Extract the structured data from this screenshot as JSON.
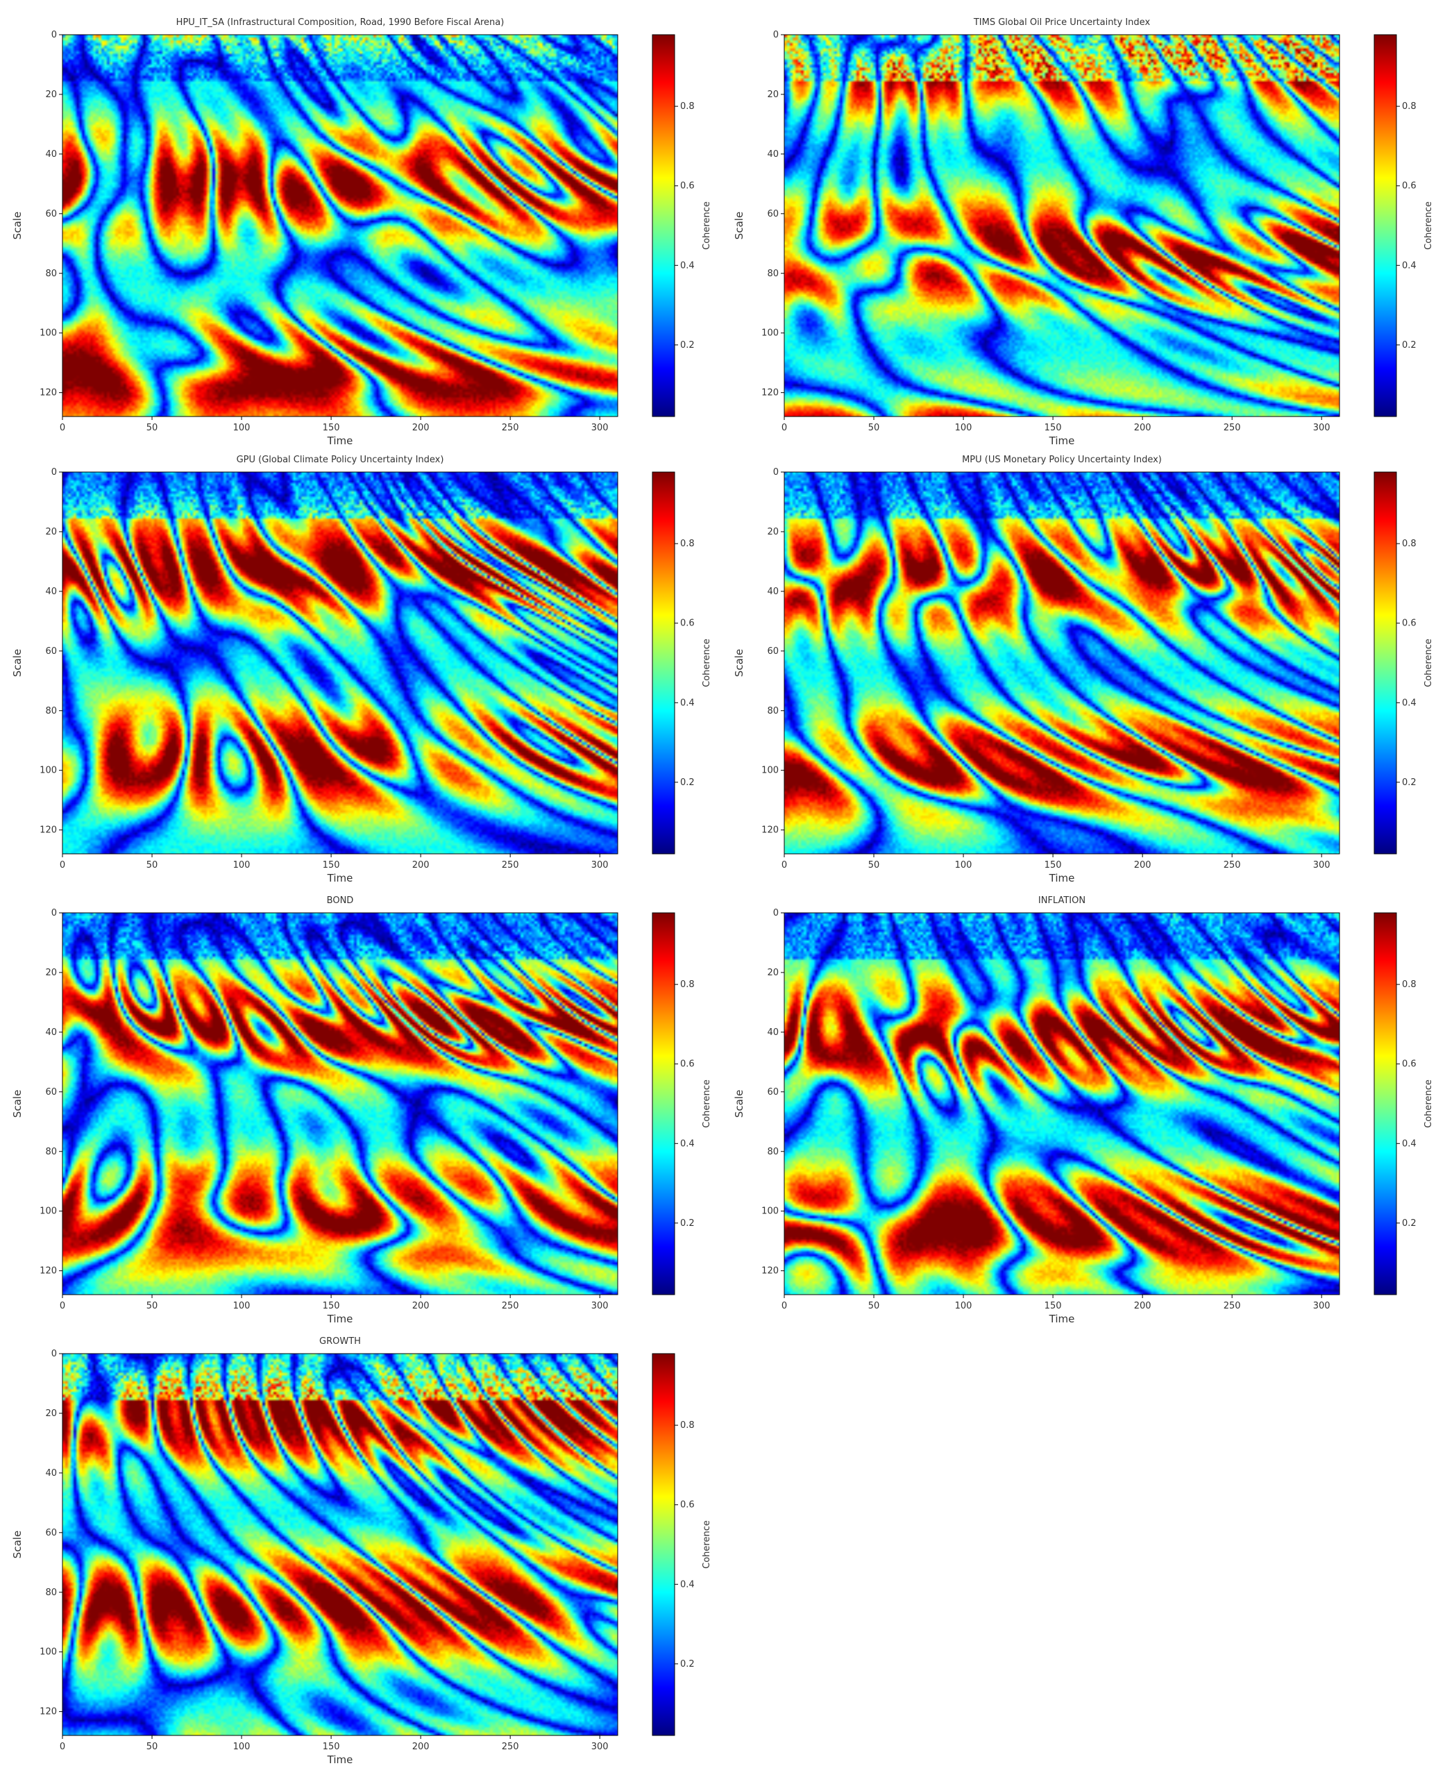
{
  "colormap": [
    "#00007f",
    "#0000ff",
    "#007fff",
    "#00ffff",
    "#7fff7f",
    "#ffff00",
    "#ff7f00",
    "#ff0000",
    "#7f0000"
  ],
  "chart_data": [
    {
      "type": "heatmap",
      "title": "HPU_IT_SA (Infrastructural Composition, Road, 1990 Before Fiscal Arena)",
      "xlabel": "Time",
      "ylabel": "Scale",
      "colorbar_label": "Coherence",
      "xlim": [
        0,
        310
      ],
      "ylim": [
        0,
        128
      ],
      "xticks": [
        0,
        50,
        100,
        150,
        200,
        250,
        300
      ],
      "yticks": [
        0,
        20,
        40,
        60,
        80,
        100,
        120
      ],
      "colorbar_ticks": [
        0.2,
        0.4,
        0.6,
        0.8
      ],
      "colorbar_range": [
        0.02,
        0.98
      ],
      "seed": 3
    },
    {
      "type": "heatmap",
      "title": "TIMS Global Oil Price Uncertainty Index",
      "xlabel": "Time",
      "ylabel": "Scale",
      "colorbar_label": "Coherence",
      "xlim": [
        0,
        310
      ],
      "ylim": [
        0,
        128
      ],
      "xticks": [
        0,
        50,
        100,
        150,
        200,
        250,
        300
      ],
      "yticks": [
        0,
        20,
        40,
        60,
        80,
        100,
        120
      ],
      "colorbar_ticks": [
        0.2,
        0.4,
        0.6,
        0.8
      ],
      "colorbar_range": [
        0.02,
        0.98
      ],
      "seed": 7
    },
    {
      "type": "heatmap",
      "title": "GPU (Global Climate Policy Uncertainty Index)",
      "xlabel": "Time",
      "ylabel": "Scale",
      "colorbar_label": "Coherence",
      "xlim": [
        0,
        310
      ],
      "ylim": [
        0,
        128
      ],
      "xticks": [
        0,
        50,
        100,
        150,
        200,
        250,
        300
      ],
      "yticks": [
        0,
        20,
        40,
        60,
        80,
        100,
        120
      ],
      "colorbar_ticks": [
        0.2,
        0.4,
        0.6,
        0.8
      ],
      "colorbar_range": [
        0.02,
        0.98
      ],
      "seed": 11
    },
    {
      "type": "heatmap",
      "title": "MPU (US Monetary Policy Uncertainty Index)",
      "xlabel": "Time",
      "ylabel": "Scale",
      "colorbar_label": "Coherence",
      "xlim": [
        0,
        310
      ],
      "ylim": [
        0,
        128
      ],
      "xticks": [
        0,
        50,
        100,
        150,
        200,
        250,
        300
      ],
      "yticks": [
        0,
        20,
        40,
        60,
        80,
        100,
        120
      ],
      "colorbar_ticks": [
        0.2,
        0.4,
        0.6,
        0.8
      ],
      "colorbar_range": [
        0.02,
        0.98
      ],
      "seed": 17
    },
    {
      "type": "heatmap",
      "title": "BOND",
      "xlabel": "Time",
      "ylabel": "Scale",
      "colorbar_label": "Coherence",
      "xlim": [
        0,
        310
      ],
      "ylim": [
        0,
        128
      ],
      "xticks": [
        0,
        50,
        100,
        150,
        200,
        250,
        300
      ],
      "yticks": [
        0,
        20,
        40,
        60,
        80,
        100,
        120
      ],
      "colorbar_ticks": [
        0.2,
        0.4,
        0.6,
        0.8
      ],
      "colorbar_range": [
        0.02,
        0.98
      ],
      "seed": 23
    },
    {
      "type": "heatmap",
      "title": "INFLATION",
      "xlabel": "Time",
      "ylabel": "Scale",
      "colorbar_label": "Coherence",
      "xlim": [
        0,
        310
      ],
      "ylim": [
        0,
        128
      ],
      "xticks": [
        0,
        50,
        100,
        150,
        200,
        250,
        300
      ],
      "yticks": [
        0,
        20,
        40,
        60,
        80,
        100,
        120
      ],
      "colorbar_ticks": [
        0.2,
        0.4,
        0.6,
        0.8
      ],
      "colorbar_range": [
        0.02,
        0.98
      ],
      "seed": 29
    },
    {
      "type": "heatmap",
      "title": "GROWTH",
      "xlabel": "Time",
      "ylabel": "Scale",
      "colorbar_label": "Coherence",
      "xlim": [
        0,
        310
      ],
      "ylim": [
        0,
        128
      ],
      "xticks": [
        0,
        50,
        100,
        150,
        200,
        250,
        300
      ],
      "yticks": [
        0,
        20,
        40,
        60,
        80,
        100,
        120
      ],
      "colorbar_ticks": [
        0.2,
        0.4,
        0.6,
        0.8
      ],
      "colorbar_range": [
        0.02,
        0.98
      ],
      "seed": 31
    }
  ]
}
